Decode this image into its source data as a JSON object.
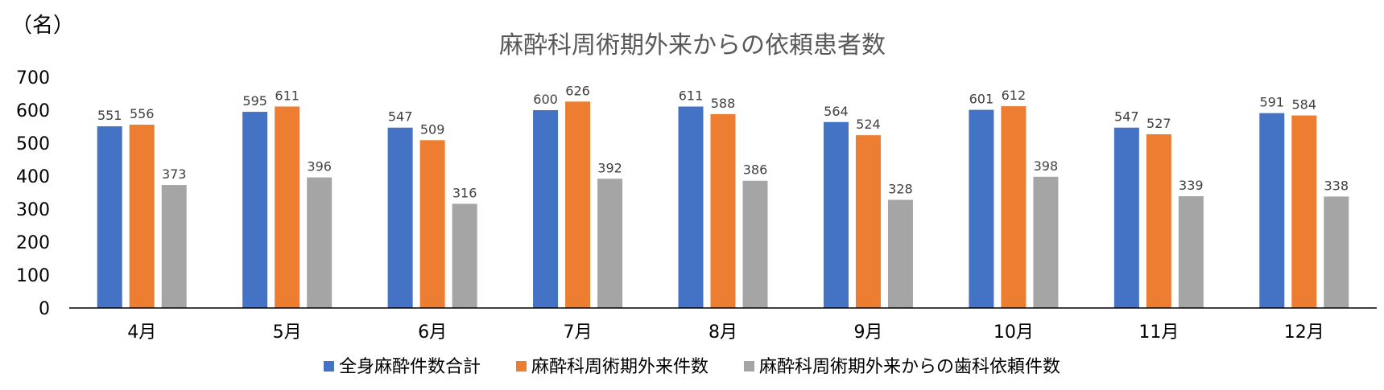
{
  "chart_data": {
    "type": "bar",
    "title": "麻酔科周術期外来からの依頼患者数",
    "unit_label": "（名）",
    "xlabel": "",
    "ylabel": "",
    "ylim": [
      0,
      700
    ],
    "yticks": [
      0,
      100,
      200,
      300,
      400,
      500,
      600,
      700
    ],
    "grid": false,
    "legend_position": "bottom",
    "categories": [
      "4月",
      "5月",
      "6月",
      "7月",
      "8月",
      "9月",
      "10月",
      "11月",
      "12月"
    ],
    "series": [
      {
        "name": "全身麻酔件数合計",
        "color": "#4472C4",
        "values": [
          551,
          595,
          547,
          600,
          611,
          564,
          601,
          547,
          591
        ]
      },
      {
        "name": "麻酔科周術期外来件数",
        "color": "#ED7D31",
        "values": [
          556,
          611,
          509,
          626,
          588,
          524,
          612,
          527,
          584
        ]
      },
      {
        "name": "麻酔科周術期外来からの歯科依頼件数",
        "color": "#A5A5A5",
        "values": [
          373,
          396,
          316,
          392,
          386,
          328,
          398,
          339,
          338
        ]
      }
    ]
  }
}
